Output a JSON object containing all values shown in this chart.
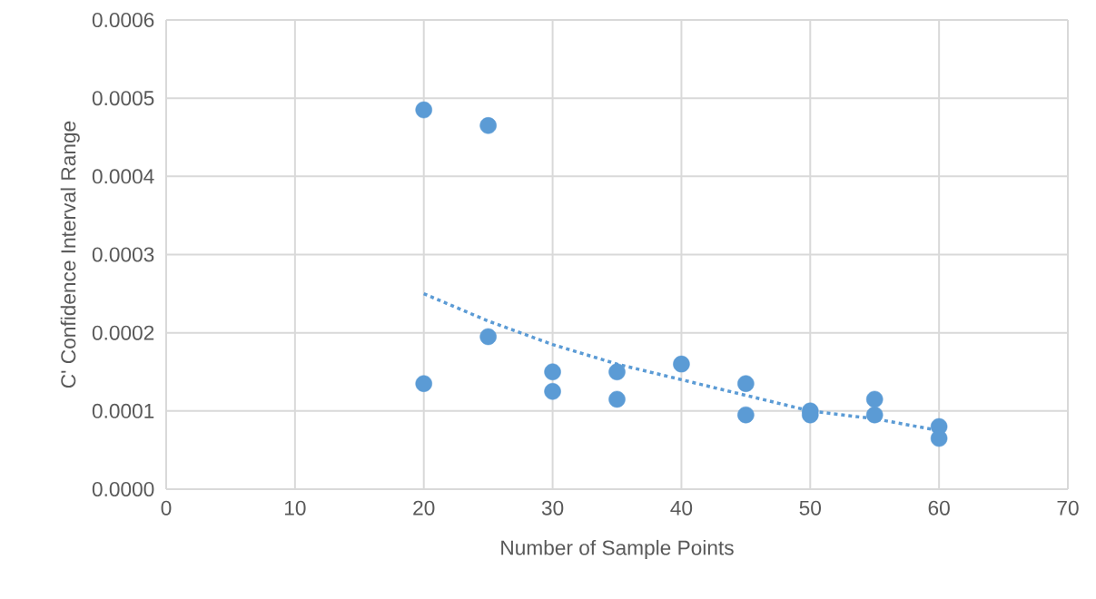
{
  "chart_data": {
    "type": "scatter",
    "xlabel": "Number of Sample Points",
    "ylabel": "C' Confidence Interval Range",
    "xlim": [
      0,
      70
    ],
    "xticks": [
      0,
      10,
      20,
      30,
      40,
      50,
      60,
      70
    ],
    "ylim": [
      0,
      0.0006
    ],
    "yticks": [
      {
        "value": 0,
        "label": "0.0000"
      },
      {
        "value": 0.0001,
        "label": "0.0001"
      },
      {
        "value": 0.0002,
        "label": "0.0002"
      },
      {
        "value": 0.0003,
        "label": "0.0003"
      },
      {
        "value": 0.0004,
        "label": "0.0004"
      },
      {
        "value": 0.0005,
        "label": "0.0005"
      },
      {
        "value": 0.0006,
        "label": "0.0006"
      }
    ],
    "grid": true,
    "legend": false,
    "series": [
      {
        "color": "#5b9bd5",
        "marker": "circle",
        "x": [
          20,
          20,
          25,
          25,
          30,
          30,
          35,
          35,
          40,
          45,
          45,
          50,
          50,
          55,
          55,
          60,
          60
        ],
        "values": [
          0.000485,
          0.000135,
          0.000465,
          0.000195,
          0.00015,
          0.000125,
          0.00015,
          0.000115,
          0.00016,
          0.000135,
          9.5e-05,
          0.0001,
          9.5e-05,
          0.000115,
          9.5e-05,
          8e-05,
          6.5e-05
        ]
      },
      {
        "type": "line",
        "color": "#5b9bd5",
        "marker": "none",
        "line_style": "dotted",
        "x": [
          20,
          25,
          30,
          35,
          40,
          45,
          50,
          55,
          60
        ],
        "values": [
          0.00025,
          0.000215,
          0.000185,
          0.00016,
          0.00014,
          0.00012,
          0.0001,
          9e-05,
          7.5e-05
        ]
      }
    ]
  }
}
